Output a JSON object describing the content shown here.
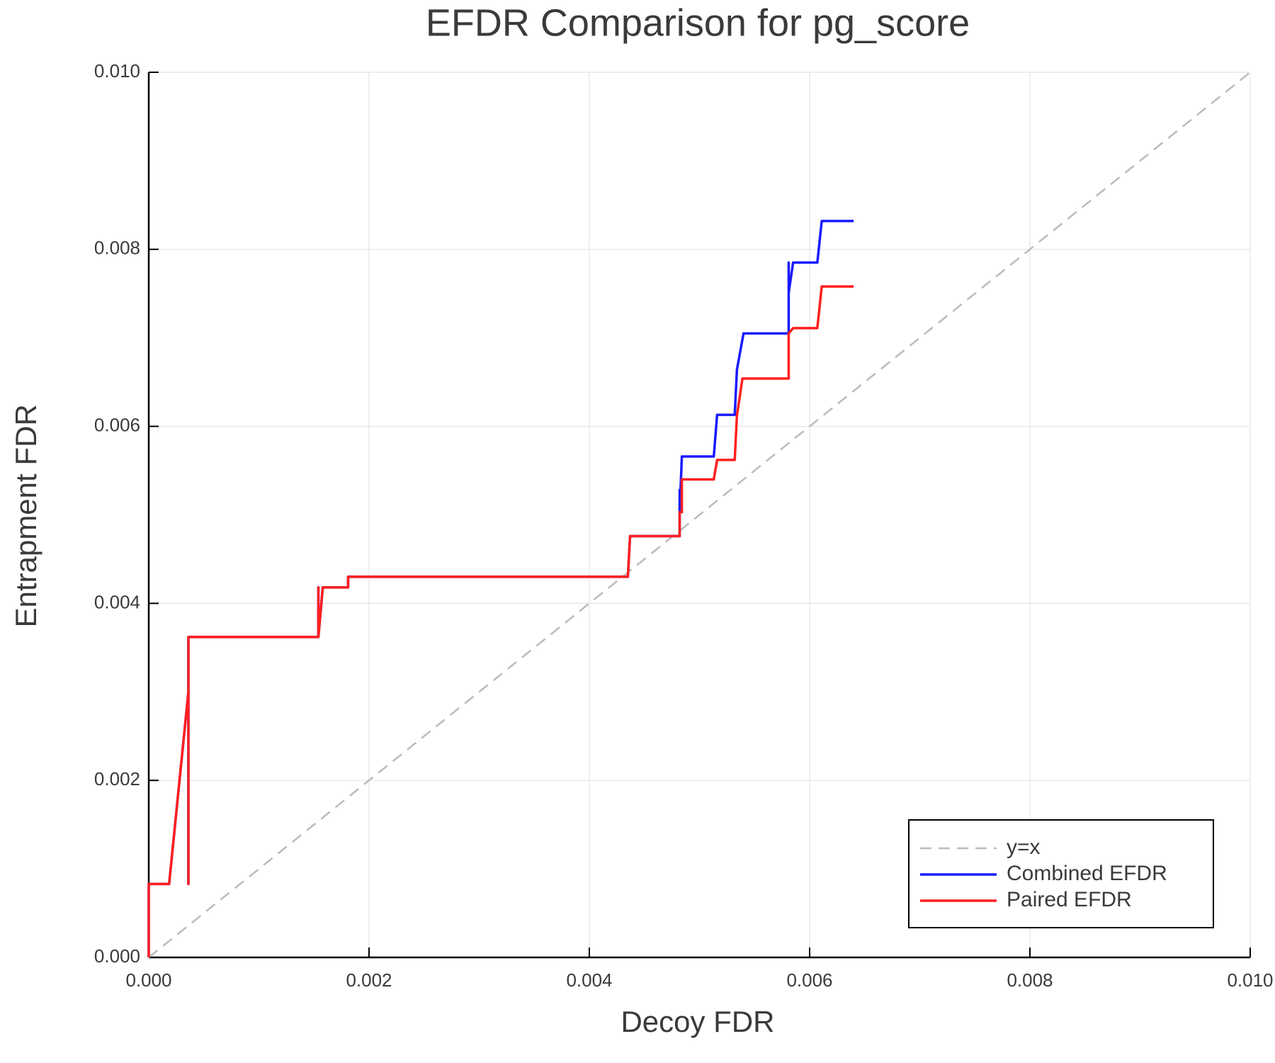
{
  "chart_data": {
    "type": "line",
    "title": "EFDR Comparison for pg_score",
    "x_label": "Decoy FDR",
    "y_label": "Entrapment FDR",
    "xlim": [
      0,
      0.01
    ],
    "ylim": [
      0,
      0.01
    ],
    "xticks": [
      {
        "value": 0,
        "label": "0.000"
      },
      {
        "value": 0.002,
        "label": "0.002"
      },
      {
        "value": 0.004,
        "label": "0.004"
      },
      {
        "value": 0.006,
        "label": "0.006"
      },
      {
        "value": 0.008,
        "label": "0.008"
      },
      {
        "value": 0.01,
        "label": "0.010"
      }
    ],
    "yticks": [
      {
        "value": 0,
        "label": "0.000"
      },
      {
        "value": 0.002,
        "label": "0.002"
      },
      {
        "value": 0.004,
        "label": "0.004"
      },
      {
        "value": 0.006,
        "label": "0.006"
      },
      {
        "value": 0.008,
        "label": "0.008"
      },
      {
        "value": 0.01,
        "label": "0.010"
      }
    ],
    "grid": true,
    "legend": "lower right",
    "series": [
      {
        "name": "y=x",
        "color": "#bbbbbb",
        "dashed": true,
        "x": [
          0,
          0.01
        ],
        "y": [
          0,
          0.01
        ]
      },
      {
        "name": "Combined EFDR",
        "color": "#1a1aff",
        "x": [
          0,
          0,
          0.000185,
          0.00036,
          0.00036,
          0.00036,
          0.00154,
          0.00154,
          0.00154,
          0.00158,
          0.00181,
          0.00181,
          0.00435,
          0.00437,
          0.00482,
          0.00482,
          0.00482,
          0.00484,
          0.00513,
          0.00516,
          0.00532,
          0.00534,
          0.0054,
          0.00581,
          0.00581,
          0.00581,
          0.00585,
          0.00607,
          0.00611,
          0.0064
        ],
        "y": [
          0,
          0.00083,
          0.00083,
          0.003,
          0.00083,
          0.00362,
          0.00362,
          0.00418,
          0.00362,
          0.00418,
          0.00418,
          0.0043,
          0.0043,
          0.00476,
          0.00476,
          0.00528,
          0.00503,
          0.00566,
          0.00566,
          0.00613,
          0.00613,
          0.00664,
          0.00705,
          0.00705,
          0.00785,
          0.00751,
          0.00785,
          0.00785,
          0.00832,
          0.00832
        ]
      },
      {
        "name": "Paired EFDR",
        "color": "#ff1f1f",
        "x": [
          0,
          0,
          0.000185,
          0.00036,
          0.00036,
          0.00036,
          0.00154,
          0.00154,
          0.00154,
          0.00158,
          0.00181,
          0.00181,
          0.00435,
          0.00437,
          0.00482,
          0.00482,
          0.00484,
          0.00484,
          0.00513,
          0.00516,
          0.00532,
          0.00534,
          0.00539,
          0.00581,
          0.00581,
          0.00585,
          0.00607,
          0.00611,
          0.0064
        ],
        "y": [
          0,
          0.00083,
          0.00083,
          0.003,
          0.00083,
          0.00362,
          0.00362,
          0.00418,
          0.00362,
          0.00418,
          0.00418,
          0.0043,
          0.0043,
          0.00476,
          0.00476,
          0.00503,
          0.00503,
          0.0054,
          0.0054,
          0.00562,
          0.00562,
          0.00612,
          0.00654,
          0.00654,
          0.00705,
          0.00711,
          0.00711,
          0.00758,
          0.00758
        ]
      }
    ]
  }
}
